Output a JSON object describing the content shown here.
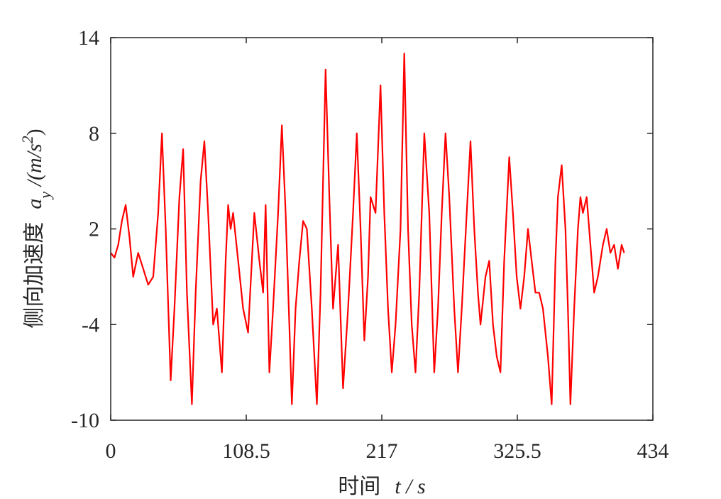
{
  "chart_data": {
    "type": "line",
    "x_label": {
      "text": "时间",
      "symbol": "t / s"
    },
    "y_label": {
      "text": "侧向加速度",
      "symbol": "a",
      "subscript": "y",
      "unit": " /(m/s",
      "superscript": "2",
      "close": ")"
    },
    "xlim": [
      0,
      434
    ],
    "xticks": [
      0,
      108.5,
      217,
      325.5,
      434
    ],
    "ylim": [
      -10,
      14
    ],
    "yticks": [
      -10,
      -4,
      2,
      8,
      14
    ],
    "grid": false,
    "series": [
      {
        "color": "#ff0000",
        "x": [
          0,
          3,
          6,
          9,
          12,
          15,
          18,
          22,
          26,
          30,
          34,
          38,
          41,
          44,
          48,
          51,
          55,
          58,
          61,
          65,
          68,
          72,
          75,
          78,
          82,
          85,
          89,
          92,
          94,
          96,
          98,
          102,
          106,
          110,
          113,
          115,
          119,
          122,
          124,
          127,
          130,
          134,
          137,
          140,
          143,
          145,
          148,
          151,
          154,
          157,
          161,
          165,
          168,
          172,
          175,
          178,
          180,
          182,
          186,
          190,
          194,
          197,
          200,
          203,
          206,
          208,
          212,
          216,
          219,
          222,
          225,
          228,
          232,
          235,
          238,
          241,
          244,
          247,
          251,
          255,
          259,
          262,
          265,
          268,
          271,
          275,
          278,
          281,
          285,
          288,
          291,
          294,
          296,
          300,
          303,
          306,
          309,
          312,
          315,
          319,
          322,
          325,
          328,
          331,
          334,
          337,
          340,
          343,
          346,
          350,
          353,
          356,
          358,
          361,
          364,
          366,
          368,
          371,
          374,
          376,
          378,
          381,
          384,
          387,
          390,
          394,
          397,
          400,
          403,
          406,
          409,
          411
        ],
        "values": [
          0.5,
          0.2,
          1,
          2.5,
          3.5,
          1.5,
          -1,
          0.5,
          -0.5,
          -1.5,
          -1,
          3,
          8,
          2,
          -7.5,
          -3,
          4,
          7,
          -2,
          -9,
          -2,
          5,
          7.5,
          3,
          -4,
          -3,
          -7,
          0,
          3.5,
          2,
          3,
          0,
          -3,
          -4.5,
          0,
          3,
          0,
          -2,
          3.5,
          -7,
          -3,
          3,
          8.5,
          3,
          -4,
          -9,
          -3,
          0,
          2.5,
          2,
          -3,
          -9,
          -2,
          12,
          4,
          -3,
          -1,
          1,
          -8,
          -3,
          3,
          8,
          2,
          -5,
          -1,
          4,
          3,
          11,
          3,
          -3,
          -7,
          -4,
          2,
          13,
          2,
          -4,
          -7,
          -2,
          8,
          3,
          -7,
          -3,
          3,
          8,
          4,
          -3,
          -7,
          -3,
          3,
          7.5,
          2,
          -2,
          -4,
          -1,
          0,
          -4,
          -6,
          -7,
          0,
          6.5,
          3,
          -1,
          -3,
          -1,
          2,
          0,
          -2,
          -2,
          -3,
          -6,
          -9,
          0,
          4,
          6,
          2,
          -3,
          -9,
          -3,
          2,
          4,
          3,
          4,
          1,
          -2,
          -1,
          1,
          2,
          0.5,
          1,
          -0.5,
          1,
          0.5
        ]
      }
    ]
  }
}
